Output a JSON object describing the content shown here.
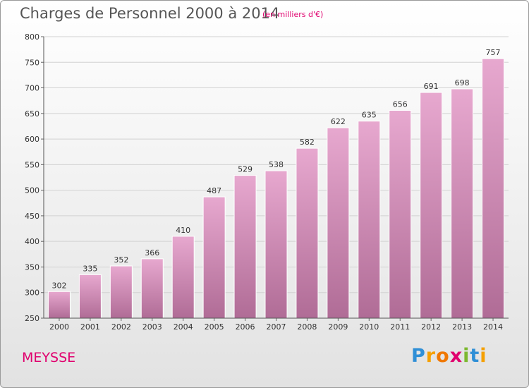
{
  "chart_data": {
    "type": "bar",
    "title": "Charges de Personnel 2000 à 2014",
    "subtitle": "(en milliers d'€)",
    "categories": [
      "2000",
      "2001",
      "2002",
      "2003",
      "2004",
      "2005",
      "2006",
      "2007",
      "2008",
      "2009",
      "2010",
      "2011",
      "2012",
      "2013",
      "2014"
    ],
    "values": [
      302,
      335,
      352,
      366,
      410,
      487,
      529,
      538,
      582,
      622,
      635,
      656,
      691,
      698,
      757
    ],
    "ylim": [
      250,
      800
    ],
    "yticks": [
      250,
      300,
      350,
      400,
      450,
      500,
      550,
      600,
      650,
      700,
      750,
      800
    ],
    "xlabel": "",
    "ylabel": "",
    "bar_color": "#d58ab8"
  },
  "commune": "MEYSSE",
  "logo": {
    "letters": [
      "P",
      "r",
      "o",
      "x",
      "i",
      "t",
      "i"
    ],
    "colors": [
      "#2f8fd6",
      "#f5a000",
      "#f07800",
      "#e0006e",
      "#7cb82f",
      "#2f8fd6",
      "#f5a000"
    ]
  }
}
